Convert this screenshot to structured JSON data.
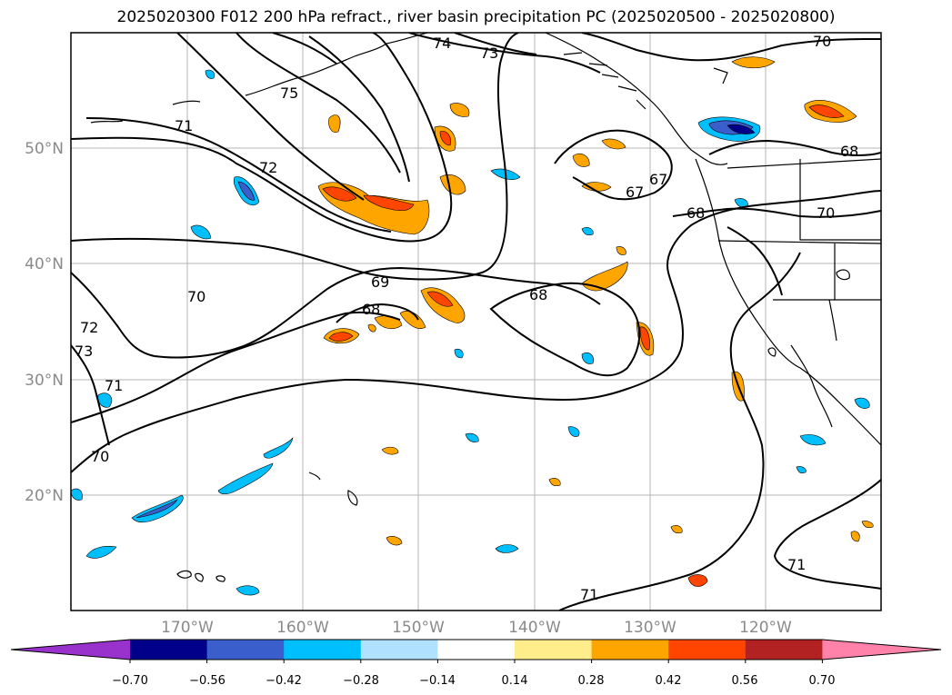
{
  "title": "2025020300 F012 200 hPa refract., river basin precipitation PC (2025020500 - 2025020800)",
  "map": {
    "lat_labels": [
      "50°N",
      "40°N",
      "30°N",
      "20°N"
    ],
    "lon_labels": [
      "170°W",
      "160°W",
      "150°W",
      "140°W",
      "130°W",
      "120°W"
    ],
    "contour_labels": [
      "74",
      "73",
      "75",
      "71",
      "72",
      "73",
      "72",
      "71",
      "70",
      "70",
      "69",
      "68",
      "68",
      "67",
      "67",
      "68",
      "68",
      "70",
      "70",
      "71",
      "71"
    ]
  },
  "colorbar": {
    "ticks": [
      "−0.70",
      "−0.56",
      "−0.42",
      "−0.28",
      "−0.14",
      "0.14",
      "0.28",
      "0.42",
      "0.56",
      "0.70"
    ],
    "colors": [
      "#9932cc",
      "#00008b",
      "#3a5fcd",
      "#00bfff",
      "#b0e2ff",
      "#ffffff",
      "#ffec8b",
      "#ffa500",
      "#ff4500",
      "#b22222",
      "#ff82ab"
    ]
  }
}
